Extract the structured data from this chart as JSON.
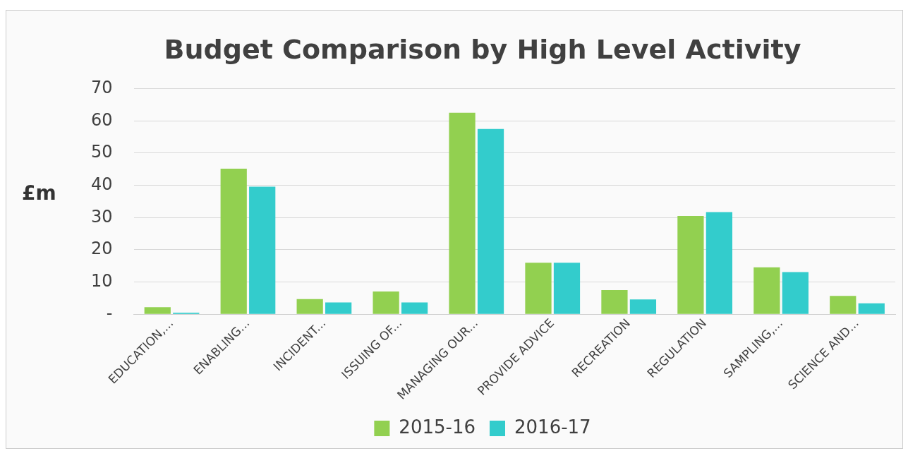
{
  "chart_data": {
    "type": "bar",
    "title": "Budget Comparison by High Level Activity",
    "ylabel": "£m",
    "categories": [
      "EDUCATION,...",
      "ENABLING...",
      "INCIDENT...",
      "ISSUING OF...",
      "MANAGING OUR...",
      "PROVIDE ADVICE",
      "RECREATION",
      "REGULATION",
      "SAMPLING,...",
      "SCIENCE AND..."
    ],
    "series": [
      {
        "name": "2015-16",
        "color": "#92d050",
        "values": [
          2.2,
          45.2,
          4.7,
          7.1,
          62.5,
          16,
          7.5,
          30.5,
          14.6,
          5.7
        ]
      },
      {
        "name": "2016-17",
        "color": "#33cccc",
        "values": [
          0.5,
          39.6,
          3.7,
          3.7,
          57.5,
          16,
          4.6,
          31.7,
          13.1,
          3.4
        ]
      }
    ],
    "ylim": [
      0,
      70
    ],
    "yticks": [
      {
        "value": 0,
        "label": "-"
      },
      10,
      20,
      30,
      40,
      50,
      60,
      70
    ],
    "grid": "y",
    "legend": "bottom"
  }
}
